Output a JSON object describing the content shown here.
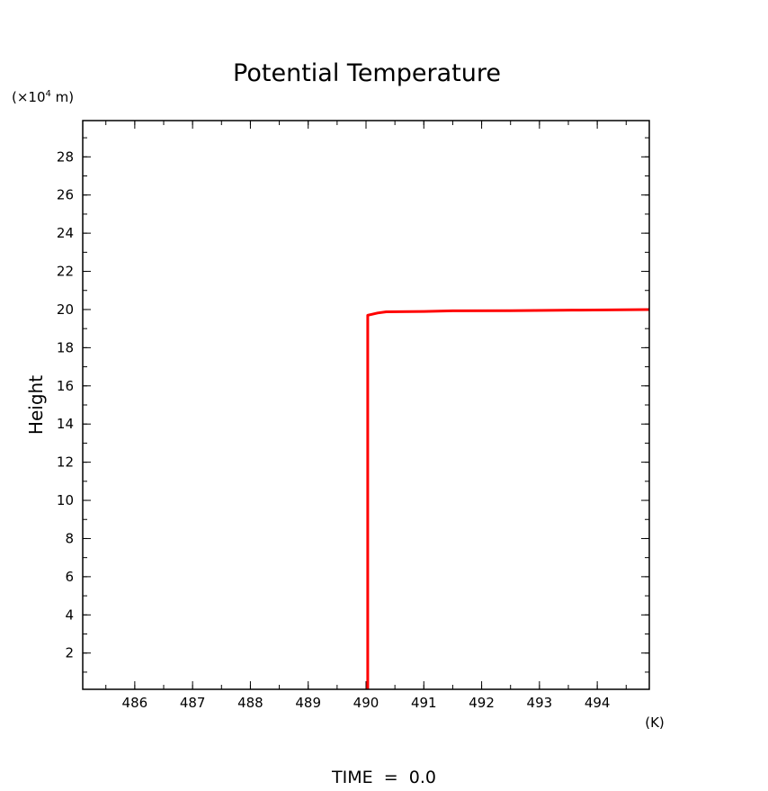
{
  "chart_data": {
    "type": "line",
    "title": "Potential Temperature",
    "xlabel": "",
    "ylabel": "Height",
    "x_unit": "(K)",
    "y_unit_prefix": "(×10",
    "y_unit_exp": "4",
    "y_unit_suffix": " m)",
    "footer": "TIME  =  0.0",
    "xlim": [
      485.1,
      494.9
    ],
    "ylim": [
      0.1,
      29.9
    ],
    "x_ticks": [
      486,
      487,
      488,
      489,
      490,
      491,
      492,
      493,
      494
    ],
    "y_ticks": [
      2,
      4,
      6,
      8,
      10,
      12,
      14,
      16,
      18,
      20,
      22,
      24,
      26,
      28
    ],
    "x_minor_step": 0.5,
    "y_minor_step": 1,
    "grid": false,
    "series": [
      {
        "color": "#ff0000",
        "x": [
          490.03,
          490.03,
          490.1,
          490.2,
          490.35,
          491.0,
          491.5,
          492.5,
          493.7,
          494.9
        ],
        "y": [
          0.1,
          19.7,
          19.75,
          19.82,
          19.88,
          19.9,
          19.93,
          19.94,
          19.97,
          20.0
        ]
      }
    ]
  }
}
